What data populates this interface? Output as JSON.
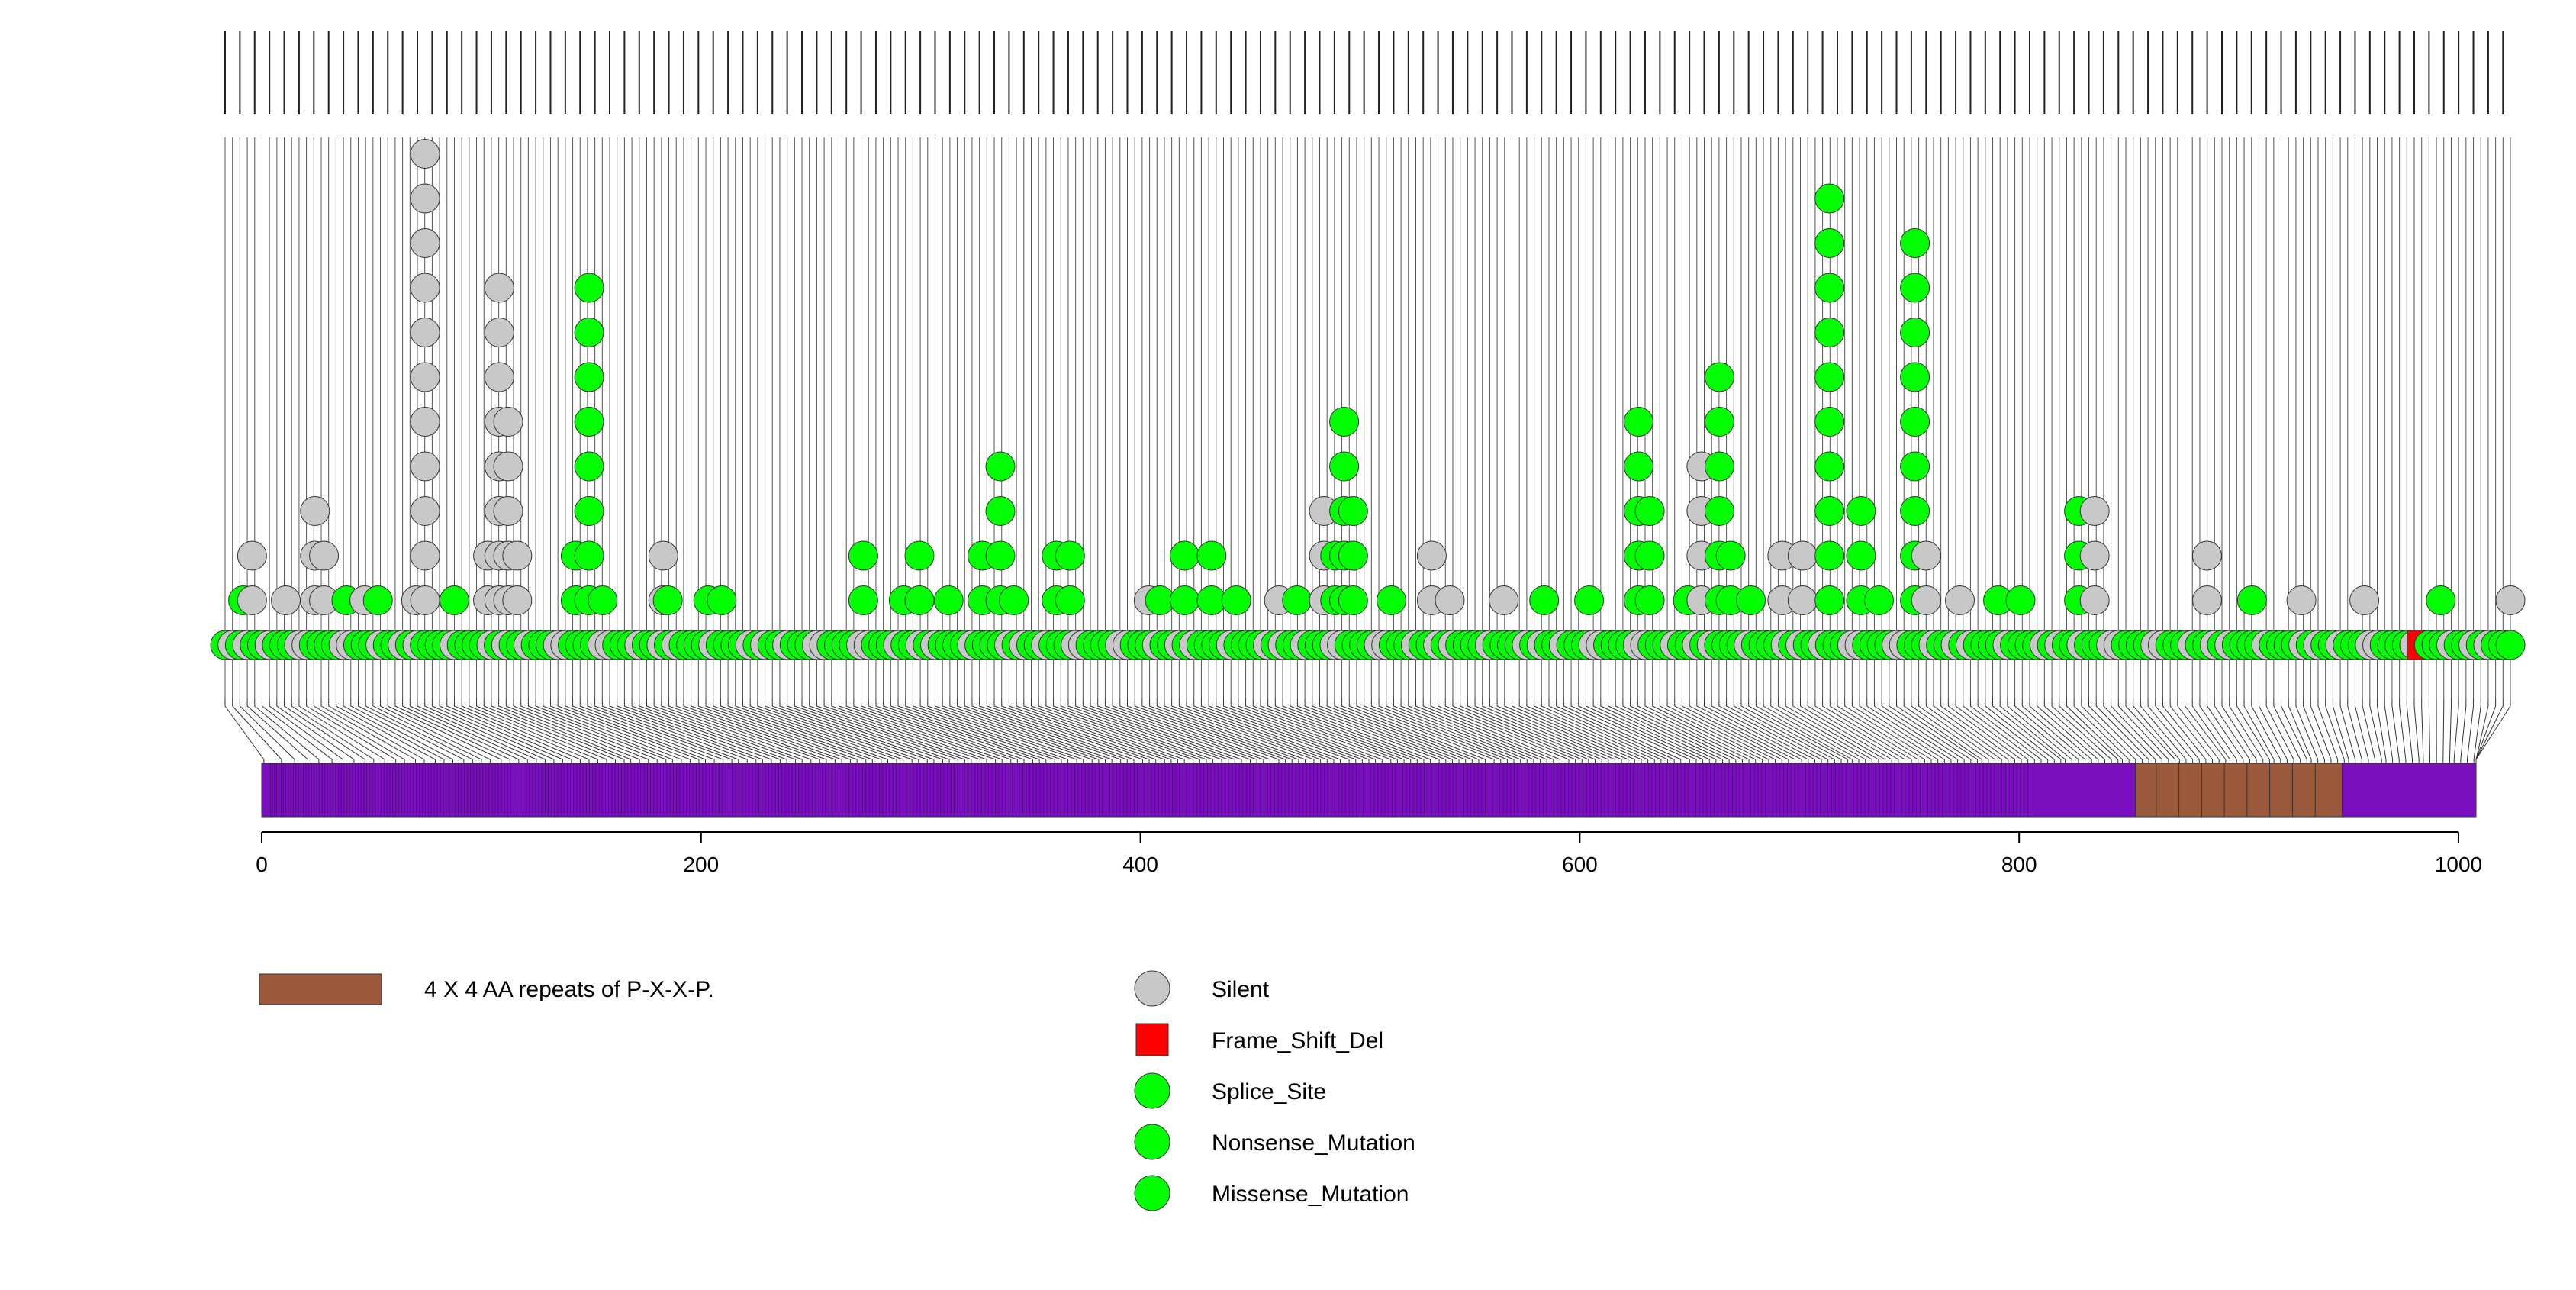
{
  "chart_data": {
    "type": "lollipop",
    "protein_length": 1008,
    "x_axis": {
      "range": [
        0,
        1008
      ],
      "ticks": [
        0,
        200,
        400,
        600,
        800,
        1000
      ],
      "tick_labels": [
        "0",
        "200",
        "400",
        "600",
        "800",
        "1000"
      ]
    },
    "domains": [
      {
        "name": "4 X 4 AA repeats of P-X-X-P.",
        "start": 853,
        "end": 947,
        "color": "#9b5a3c"
      }
    ],
    "protein_color": "#7b0fbf",
    "legend": {
      "domains": [
        {
          "label": "4 X 4 AA repeats of P-X-X-P.",
          "color": "#9b5a3c",
          "shape": "rect"
        }
      ],
      "mutation_types": [
        {
          "label": "Silent",
          "color": "#c8c8c8",
          "shape": "circle"
        },
        {
          "label": "Frame_Shift_Del",
          "color": "#ff0000",
          "shape": "square"
        },
        {
          "label": "Splice_Site",
          "color": "#00ff00",
          "shape": "circle"
        },
        {
          "label": "Nonsense_Mutation",
          "color": "#00ff00",
          "shape": "circle"
        },
        {
          "label": "Missense_Mutation",
          "color": "#00ff00",
          "shape": "circle"
        }
      ]
    },
    "stacks": [
      {
        "pos": 9,
        "n": 2,
        "type": "Missense_Mutation"
      },
      {
        "pos": 13,
        "n": 3,
        "type": "Silent"
      },
      {
        "pos": 28,
        "n": 2,
        "type": "Silent"
      },
      {
        "pos": 41,
        "n": 4,
        "type": "Silent"
      },
      {
        "pos": 45,
        "n": 3,
        "type": "Silent"
      },
      {
        "pos": 55,
        "n": 2,
        "type": "Missense_Mutation"
      },
      {
        "pos": 63,
        "n": 2,
        "type": "Silent"
      },
      {
        "pos": 69,
        "n": 2,
        "type": "Missense_Mutation"
      },
      {
        "pos": 86,
        "n": 2,
        "type": "Silent"
      },
      {
        "pos": 90,
        "n": 12,
        "type": "Silent"
      },
      {
        "pos": 103,
        "n": 2,
        "type": "Missense_Mutation"
      },
      {
        "pos": 118,
        "n": 3,
        "type": "Silent"
      },
      {
        "pos": 123,
        "n": 9,
        "type": "Silent"
      },
      {
        "pos": 127,
        "n": 6,
        "type": "Silent"
      },
      {
        "pos": 131,
        "n": 3,
        "type": "Silent"
      },
      {
        "pos": 157,
        "n": 3,
        "type": "Missense_Mutation"
      },
      {
        "pos": 163,
        "n": 9,
        "type": "Missense_Mutation"
      },
      {
        "pos": 169,
        "n": 2,
        "type": "Missense_Mutation"
      },
      {
        "pos": 196,
        "n": 3,
        "type": "Silent"
      },
      {
        "pos": 198,
        "n": 2,
        "type": "Missense_Mutation"
      },
      {
        "pos": 216,
        "n": 2,
        "type": "Missense_Mutation"
      },
      {
        "pos": 222,
        "n": 2,
        "type": "Missense_Mutation"
      },
      {
        "pos": 285,
        "n": 3,
        "type": "Missense_Mutation"
      },
      {
        "pos": 303,
        "n": 2,
        "type": "Missense_Mutation"
      },
      {
        "pos": 310,
        "n": 3,
        "type": "Missense_Mutation"
      },
      {
        "pos": 323,
        "n": 2,
        "type": "Missense_Mutation"
      },
      {
        "pos": 338,
        "n": 3,
        "type": "Missense_Mutation"
      },
      {
        "pos": 346,
        "n": 5,
        "type": "Missense_Mutation"
      },
      {
        "pos": 352,
        "n": 2,
        "type": "Missense_Mutation"
      },
      {
        "pos": 371,
        "n": 3,
        "type": "Missense_Mutation"
      },
      {
        "pos": 377,
        "n": 3,
        "type": "Missense_Mutation"
      },
      {
        "pos": 412,
        "n": 2,
        "type": "Silent"
      },
      {
        "pos": 417,
        "n": 2,
        "type": "Missense_Mutation"
      },
      {
        "pos": 428,
        "n": 3,
        "type": "Missense_Mutation"
      },
      {
        "pos": 440,
        "n": 3,
        "type": "Missense_Mutation"
      },
      {
        "pos": 451,
        "n": 2,
        "type": "Missense_Mutation"
      },
      {
        "pos": 470,
        "n": 2,
        "type": "Silent"
      },
      {
        "pos": 478,
        "n": 2,
        "type": "Missense_Mutation"
      },
      {
        "pos": 490,
        "n": 4,
        "type": "Silent"
      },
      {
        "pos": 495,
        "n": 3,
        "type": "Missense_Mutation"
      },
      {
        "pos": 499,
        "n": 6,
        "type": "Missense_Mutation"
      },
      {
        "pos": 503,
        "n": 4,
        "type": "Missense_Mutation"
      },
      {
        "pos": 520,
        "n": 2,
        "type": "Missense_Mutation"
      },
      {
        "pos": 538,
        "n": 3,
        "type": "Silent"
      },
      {
        "pos": 546,
        "n": 2,
        "type": "Silent"
      },
      {
        "pos": 570,
        "n": 2,
        "type": "Silent"
      },
      {
        "pos": 588,
        "n": 2,
        "type": "Missense_Mutation"
      },
      {
        "pos": 608,
        "n": 2,
        "type": "Missense_Mutation"
      },
      {
        "pos": 630,
        "n": 6,
        "type": "Missense_Mutation"
      },
      {
        "pos": 635,
        "n": 4,
        "type": "Missense_Mutation"
      },
      {
        "pos": 652,
        "n": 2,
        "type": "Missense_Mutation"
      },
      {
        "pos": 658,
        "n": 5,
        "type": "Silent"
      },
      {
        "pos": 666,
        "n": 7,
        "type": "Missense_Mutation"
      },
      {
        "pos": 671,
        "n": 3,
        "type": "Missense_Mutation"
      },
      {
        "pos": 680,
        "n": 2,
        "type": "Missense_Mutation"
      },
      {
        "pos": 694,
        "n": 3,
        "type": "Silent"
      },
      {
        "pos": 703,
        "n": 3,
        "type": "Silent"
      },
      {
        "pos": 715,
        "n": 11,
        "type": "Missense_Mutation"
      },
      {
        "pos": 729,
        "n": 4,
        "type": "Missense_Mutation"
      },
      {
        "pos": 737,
        "n": 2,
        "type": "Missense_Mutation"
      },
      {
        "pos": 753,
        "n": 10,
        "type": "Missense_Mutation"
      },
      {
        "pos": 758,
        "n": 3,
        "type": "Silent"
      },
      {
        "pos": 773,
        "n": 2,
        "type": "Silent"
      },
      {
        "pos": 790,
        "n": 2,
        "type": "Missense_Mutation"
      },
      {
        "pos": 800,
        "n": 2,
        "type": "Missense_Mutation"
      },
      {
        "pos": 826,
        "n": 4,
        "type": "Missense_Mutation"
      },
      {
        "pos": 833,
        "n": 4,
        "type": "Silent"
      },
      {
        "pos": 883,
        "n": 3,
        "type": "Silent"
      },
      {
        "pos": 903,
        "n": 2,
        "type": "Missense_Mutation"
      },
      {
        "pos": 925,
        "n": 2,
        "type": "Silent"
      },
      {
        "pos": 953,
        "n": 2,
        "type": "Silent"
      },
      {
        "pos": 987,
        "n": 2,
        "type": "Missense_Mutation"
      },
      {
        "pos": 1018,
        "n": 2,
        "type": "Silent"
      }
    ],
    "frame_shift_positions": [
      978
    ]
  }
}
